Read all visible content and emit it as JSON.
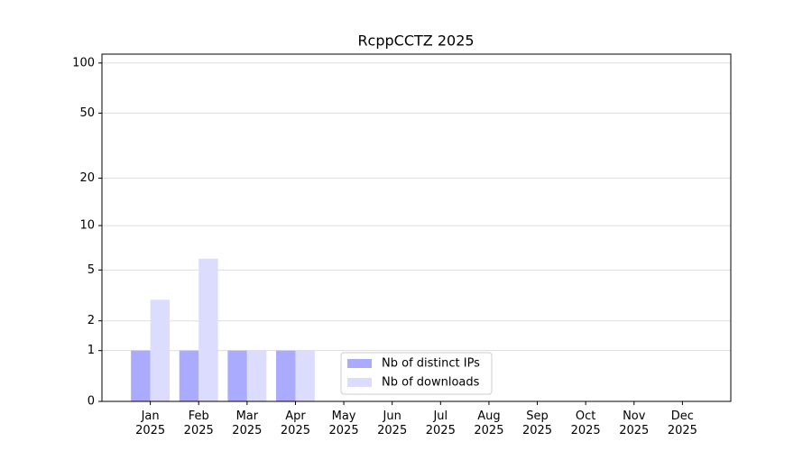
{
  "chart_data": {
    "type": "bar",
    "title": "RcppCCTZ 2025",
    "categories": [
      "Jan 2025",
      "Feb 2025",
      "Mar 2025",
      "Apr 2025",
      "May 2025",
      "Jun 2025",
      "Jul 2025",
      "Aug 2025",
      "Sep 2025",
      "Oct 2025",
      "Nov 2025",
      "Dec 2025"
    ],
    "series": [
      {
        "name": "Nb of distinct IPs",
        "color": "#aaaaff",
        "values": [
          1,
          1,
          1,
          1,
          0,
          0,
          0,
          0,
          0,
          0,
          0,
          0
        ]
      },
      {
        "name": "Nb of downloads",
        "color": "#dcdcff",
        "values": [
          3,
          6,
          1,
          1,
          0,
          0,
          0,
          0,
          0,
          0,
          0,
          0
        ]
      }
    ],
    "yscale": "log1p",
    "ylim": [
      0,
      113
    ],
    "yticks": [
      0,
      1,
      2,
      5,
      10,
      20,
      50,
      100
    ],
    "grid": true,
    "legend": "lower center"
  }
}
